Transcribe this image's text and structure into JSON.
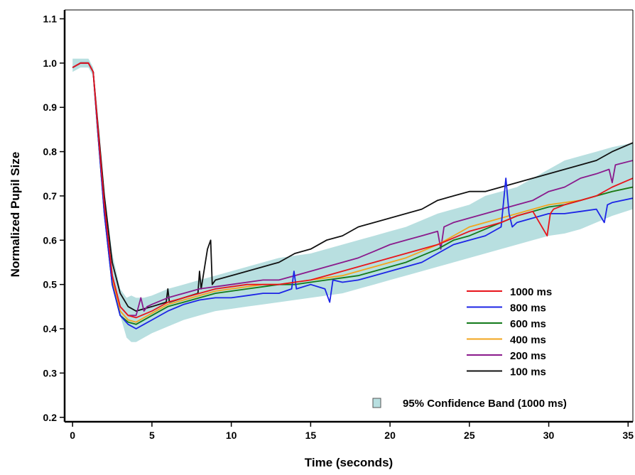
{
  "chart_data": {
    "type": "line",
    "title": "",
    "xlabel": "Time (seconds)",
    "ylabel": "Normalized Pupil Size",
    "xlim": [
      -0.5,
      35.3
    ],
    "ylim": [
      0.19,
      1.12
    ],
    "xticks": [
      0,
      5,
      10,
      15,
      20,
      25,
      30,
      35
    ],
    "yticks": [
      0.2,
      0.3,
      0.4,
      0.5,
      0.6,
      0.7,
      0.8,
      0.9,
      1.0,
      1.1
    ],
    "xtick_labels": [
      "0",
      "5",
      "10",
      "15",
      "20",
      "25",
      "30",
      "35"
    ],
    "ytick_labels": [
      "0.2",
      "0.3",
      "0.4",
      "0.5",
      "0.6",
      "0.7",
      "0.8",
      "0.9",
      "1.0",
      "1.1"
    ],
    "grid": false,
    "legend_position": "bottom-right",
    "band": {
      "name": "95% Confidence Band (1000 ms)",
      "color": "#b8dfe0",
      "x": [
        0,
        0.5,
        1.0,
        1.3,
        1.6,
        2.0,
        2.5,
        3.0,
        3.4,
        3.7,
        4.0,
        4.5,
        5.0,
        6,
        7,
        8,
        9,
        10,
        11,
        12,
        13,
        14,
        15,
        16,
        17,
        18,
        19,
        20,
        21,
        22,
        23,
        24,
        25,
        26,
        27,
        28,
        29,
        30,
        31,
        32,
        33,
        34,
        35.3
      ],
      "upper": [
        1.01,
        1.01,
        1.01,
        0.99,
        0.86,
        0.71,
        0.57,
        0.49,
        0.47,
        0.475,
        0.47,
        0.47,
        0.475,
        0.49,
        0.5,
        0.51,
        0.52,
        0.53,
        0.54,
        0.55,
        0.56,
        0.565,
        0.57,
        0.58,
        0.59,
        0.6,
        0.61,
        0.62,
        0.63,
        0.645,
        0.66,
        0.67,
        0.68,
        0.7,
        0.71,
        0.72,
        0.74,
        0.76,
        0.78,
        0.79,
        0.8,
        0.81,
        0.82
      ],
      "lower": [
        0.98,
        0.99,
        0.99,
        0.97,
        0.83,
        0.67,
        0.52,
        0.43,
        0.38,
        0.37,
        0.37,
        0.38,
        0.39,
        0.405,
        0.42,
        0.43,
        0.44,
        0.445,
        0.45,
        0.455,
        0.46,
        0.465,
        0.47,
        0.475,
        0.48,
        0.49,
        0.5,
        0.51,
        0.52,
        0.53,
        0.54,
        0.55,
        0.56,
        0.57,
        0.58,
        0.59,
        0.6,
        0.61,
        0.615,
        0.625,
        0.64,
        0.655,
        0.67
      ]
    },
    "series": [
      {
        "name": "1000 ms",
        "color": "#e8141b",
        "x": [
          0,
          0.5,
          1.0,
          1.3,
          1.6,
          2.0,
          2.5,
          3.0,
          3.5,
          4.0,
          5,
          6,
          7,
          8,
          9,
          10,
          11,
          12,
          13,
          14,
          15,
          16,
          17,
          18,
          19,
          20,
          21,
          22,
          23,
          24,
          25,
          26,
          27,
          28,
          29,
          29.9,
          30.1,
          30.3,
          31,
          32,
          33,
          34,
          35.3
        ],
        "values": [
          0.99,
          1.0,
          1.0,
          0.98,
          0.85,
          0.68,
          0.52,
          0.45,
          0.43,
          0.425,
          0.44,
          0.46,
          0.47,
          0.48,
          0.49,
          0.495,
          0.5,
          0.5,
          0.5,
          0.505,
          0.51,
          0.52,
          0.53,
          0.54,
          0.55,
          0.56,
          0.57,
          0.58,
          0.59,
          0.605,
          0.62,
          0.63,
          0.64,
          0.655,
          0.665,
          0.61,
          0.66,
          0.67,
          0.68,
          0.69,
          0.7,
          0.72,
          0.74
        ]
      },
      {
        "name": "800 ms",
        "color": "#1c24e6",
        "x": [
          0,
          0.5,
          1.0,
          1.3,
          1.6,
          2.0,
          2.5,
          3.0,
          3.5,
          4.0,
          4.5,
          5,
          6,
          7,
          8,
          9,
          10,
          11,
          12,
          13,
          13.8,
          13.95,
          14.1,
          15,
          15.9,
          16.2,
          16.4,
          17,
          18,
          19,
          20,
          21,
          22,
          23,
          24,
          25,
          26,
          27,
          27.3,
          27.5,
          27.7,
          28,
          29,
          30,
          31,
          32,
          33,
          33.5,
          33.7,
          34,
          35.3
        ],
        "values": [
          0.99,
          1.0,
          1.0,
          0.98,
          0.84,
          0.66,
          0.5,
          0.43,
          0.41,
          0.4,
          0.41,
          0.42,
          0.44,
          0.455,
          0.465,
          0.47,
          0.47,
          0.475,
          0.48,
          0.48,
          0.49,
          0.53,
          0.49,
          0.5,
          0.49,
          0.46,
          0.51,
          0.505,
          0.51,
          0.52,
          0.53,
          0.54,
          0.55,
          0.57,
          0.59,
          0.6,
          0.61,
          0.63,
          0.74,
          0.66,
          0.63,
          0.64,
          0.65,
          0.66,
          0.66,
          0.665,
          0.67,
          0.64,
          0.68,
          0.685,
          0.695
        ]
      },
      {
        "name": "600 ms",
        "color": "#127a1a",
        "x": [
          0,
          0.5,
          1.0,
          1.3,
          1.6,
          2.0,
          2.5,
          3.0,
          3.5,
          4.0,
          5,
          6,
          7,
          8,
          9,
          10,
          11,
          12,
          13,
          14,
          15,
          16,
          17,
          18,
          19,
          20,
          21,
          22,
          23,
          24,
          25,
          26,
          27,
          28,
          29,
          30,
          31,
          32,
          33,
          34,
          35.3
        ],
        "values": [
          0.99,
          1.0,
          1.0,
          0.98,
          0.84,
          0.66,
          0.5,
          0.43,
          0.415,
          0.41,
          0.43,
          0.45,
          0.46,
          0.47,
          0.48,
          0.485,
          0.49,
          0.495,
          0.5,
          0.5,
          0.505,
          0.51,
          0.515,
          0.52,
          0.53,
          0.54,
          0.55,
          0.565,
          0.58,
          0.6,
          0.61,
          0.625,
          0.64,
          0.655,
          0.665,
          0.675,
          0.68,
          0.69,
          0.7,
          0.71,
          0.72
        ]
      },
      {
        "name": "400 ms",
        "color": "#f2a51c",
        "x": [
          0,
          0.5,
          1.0,
          1.3,
          1.6,
          2.0,
          2.5,
          3.0,
          3.5,
          4.0,
          5,
          6,
          7,
          8,
          9,
          10,
          11,
          12,
          13,
          14,
          15,
          16,
          17,
          18,
          19,
          20,
          21,
          22,
          23,
          24,
          25,
          26,
          27,
          28,
          29,
          30,
          31,
          32,
          33,
          34,
          35.3
        ],
        "values": [
          0.99,
          1.0,
          1.0,
          0.98,
          0.84,
          0.67,
          0.51,
          0.44,
          0.42,
          0.415,
          0.435,
          0.455,
          0.465,
          0.475,
          0.485,
          0.49,
          0.495,
          0.5,
          0.5,
          0.505,
          0.51,
          0.515,
          0.52,
          0.53,
          0.54,
          0.55,
          0.56,
          0.575,
          0.59,
          0.61,
          0.63,
          0.64,
          0.65,
          0.66,
          0.67,
          0.68,
          0.685,
          0.69,
          0.7,
          0.71,
          0.72
        ]
      },
      {
        "name": "200 ms",
        "color": "#8a1a8c",
        "x": [
          0,
          0.5,
          1.0,
          1.3,
          1.6,
          2.0,
          2.5,
          3.0,
          3.5,
          4.0,
          4.3,
          4.5,
          4.7,
          5,
          6,
          7,
          8,
          9,
          10,
          11,
          12,
          13,
          14,
          15,
          16,
          17,
          18,
          19,
          20,
          21,
          22,
          23,
          23.2,
          23.4,
          24,
          25,
          26,
          27,
          28,
          29,
          30,
          31,
          32,
          33,
          33.8,
          34.0,
          34.2,
          35.3
        ],
        "values": [
          0.99,
          1.0,
          1.0,
          0.98,
          0.85,
          0.68,
          0.52,
          0.45,
          0.43,
          0.43,
          0.47,
          0.44,
          0.45,
          0.455,
          0.47,
          0.48,
          0.49,
          0.495,
          0.5,
          0.505,
          0.51,
          0.51,
          0.52,
          0.53,
          0.54,
          0.55,
          0.56,
          0.575,
          0.59,
          0.6,
          0.61,
          0.62,
          0.58,
          0.63,
          0.64,
          0.65,
          0.66,
          0.67,
          0.68,
          0.69,
          0.71,
          0.72,
          0.74,
          0.75,
          0.76,
          0.73,
          0.77,
          0.78
        ]
      },
      {
        "name": "100 ms",
        "color": "#111111",
        "x": [
          0,
          0.5,
          1.0,
          1.3,
          1.6,
          2.0,
          2.5,
          3.0,
          3.5,
          4.0,
          5,
          5.9,
          6.0,
          6.1,
          7,
          7.9,
          8.0,
          8.1,
          8.5,
          8.7,
          8.8,
          9.0,
          10,
          11,
          12,
          13,
          14,
          15,
          16,
          17,
          18,
          19,
          20,
          21,
          22,
          23,
          24,
          25,
          26,
          27,
          28,
          29,
          30,
          31,
          32,
          33,
          34,
          35.3
        ],
        "values": [
          0.99,
          1.0,
          1.0,
          0.98,
          0.86,
          0.7,
          0.55,
          0.48,
          0.45,
          0.44,
          0.45,
          0.46,
          0.49,
          0.46,
          0.47,
          0.48,
          0.53,
          0.49,
          0.58,
          0.6,
          0.5,
          0.51,
          0.52,
          0.53,
          0.54,
          0.55,
          0.57,
          0.58,
          0.6,
          0.61,
          0.63,
          0.64,
          0.65,
          0.66,
          0.67,
          0.69,
          0.7,
          0.71,
          0.71,
          0.72,
          0.73,
          0.74,
          0.75,
          0.76,
          0.77,
          0.78,
          0.8,
          0.82
        ]
      }
    ]
  }
}
